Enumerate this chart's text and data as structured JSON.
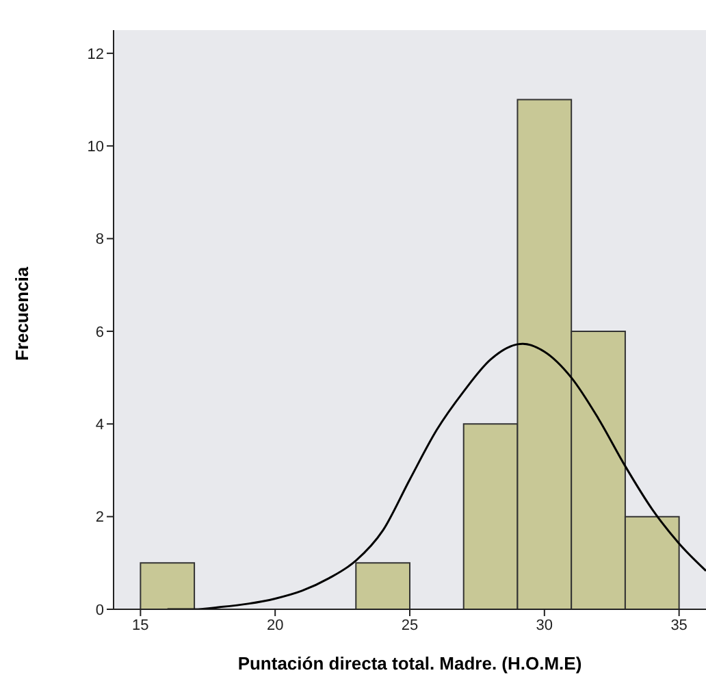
{
  "chart_data": {
    "type": "histogram",
    "xlabel": "Puntación directa total. Madre. (H.O.M.E)",
    "ylabel": "Frecuencia",
    "bins": [
      15,
      17,
      19,
      21,
      23,
      25,
      27,
      29,
      31,
      33,
      35
    ],
    "values": [
      1,
      0,
      0,
      0,
      1,
      0,
      4,
      11,
      6,
      2
    ],
    "color": "#c8c896",
    "series": [
      {
        "type": "line",
        "color": "#000000",
        "x": [
          16,
          17,
          18,
          19,
          20,
          21,
          22,
          23,
          24,
          25,
          26,
          27,
          28,
          29,
          29.2,
          30,
          31,
          32,
          33,
          34,
          35,
          36
        ],
        "values": [
          0,
          0,
          0.05,
          0.12,
          0.23,
          0.4,
          0.67,
          1.05,
          1.7,
          2.8,
          3.87,
          4.7,
          5.39,
          5.72,
          5.73,
          5.56,
          5.0,
          4.12,
          3.09,
          2.16,
          1.42,
          0.83
        ]
      }
    ],
    "xlim": [
      14,
      36
    ],
    "xticks": [
      15,
      20,
      25,
      30,
      35
    ],
    "ylim": [
      0,
      12.5
    ],
    "yticks": [
      0,
      2,
      4,
      6,
      8,
      10,
      12
    ],
    "marker": "none"
  }
}
